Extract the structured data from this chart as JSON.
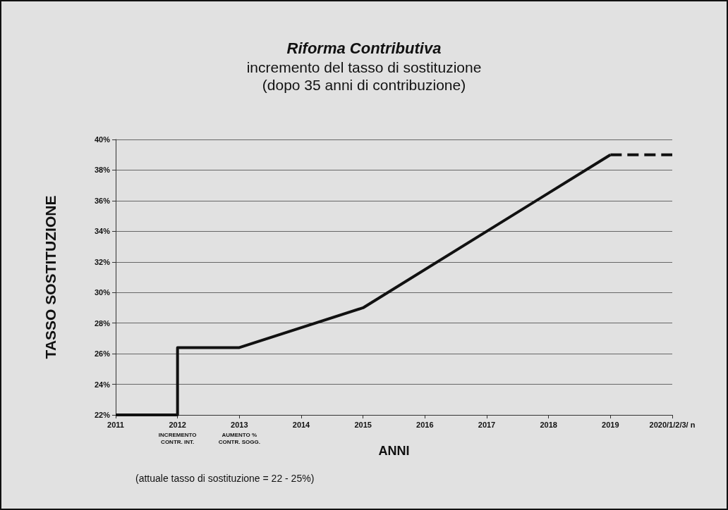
{
  "chart_data": {
    "type": "line",
    "title": "Riforma Contributiva",
    "subtitle": "incremento del tasso di sostituzione\n(dopo 35 anni di contribuzione)",
    "xlabel": "ANNI",
    "ylabel": "TASSO SOSTITUZIONE",
    "series": [
      {
        "color": "#111111",
        "x": [
          2011,
          2012,
          2012,
          2013,
          2015,
          2019
        ],
        "values": [
          22,
          22,
          26.4,
          26.4,
          29,
          39
        ],
        "line_style": "solid"
      },
      {
        "color": "#111111",
        "x": [
          2019,
          2020
        ],
        "values": [
          39,
          39
        ],
        "line_style": "dashed"
      }
    ],
    "xlim": [
      2011,
      2020
    ],
    "xticks": [
      2011,
      2012,
      2013,
      2014,
      2015,
      2016,
      2017,
      2018,
      2019,
      {
        "value": 2020,
        "label": "2020/1/2/3/ n"
      }
    ],
    "ylim": [
      22,
      40
    ],
    "yticks": [
      {
        "value": 22,
        "label": "22%"
      },
      {
        "value": 24,
        "label": "24%"
      },
      {
        "value": 26,
        "label": "26%"
      },
      {
        "value": 28,
        "label": "28%"
      },
      {
        "value": 30,
        "label": "30%"
      },
      {
        "value": 32,
        "label": "32%"
      },
      {
        "value": 34,
        "label": "34%"
      },
      {
        "value": 36,
        "label": "36%"
      },
      {
        "value": 38,
        "label": "38%"
      },
      {
        "value": 40,
        "label": "40%"
      }
    ],
    "grid": "y",
    "marker": "none",
    "annotations": [
      "INCREMENTO\nCONTR. INT.",
      "AUMENTO %\nCONTR. SOGG.",
      "(attuale tasso di sostituzione = 22 - 25%)"
    ]
  }
}
